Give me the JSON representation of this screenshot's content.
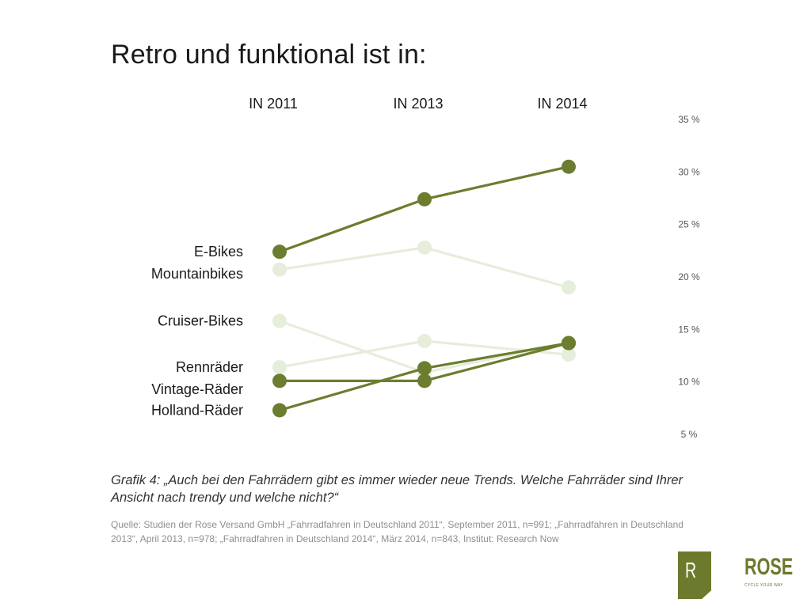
{
  "title": "Retro und funktional ist in:",
  "caption": "Grafik 4: „Auch bei den Fahrrädern gibt es immer wieder neue Trends. Welche Fahrräder sind Ihrer Ansicht nach trendy und welche nicht?“",
  "source": "Quelle: Studien der Rose Versand GmbH „Fahrradfahren in Deutschland 2011“, September 2011, n=991; „Fahrradfahren in Deutschland 2013“, April 2013, n=978;  „Fahrradfahren in Deutschland 2014“, März 2014, n=843, Institut: Research Now",
  "logo": {
    "mark": "R",
    "name": "ROSE",
    "tagline": "CYCLE YOUR WAY"
  },
  "chart_data": {
    "type": "line",
    "title": "Retro und funktional ist in:",
    "x": [
      "IN 2011",
      "IN 2013",
      "IN 2014"
    ],
    "y_ticks": [
      "35 %",
      "30 %",
      "25 %",
      "20 %",
      "15 %",
      "10 %",
      "5 %"
    ],
    "y_tick_values": [
      35,
      30,
      25,
      20,
      15,
      10,
      5
    ],
    "ylim": [
      5,
      35
    ],
    "y_axis_position": "right",
    "grid": false,
    "colors": {
      "highlight": "#6b7d2f",
      "muted": "#e6eedb"
    },
    "series": [
      {
        "name": "E-Bikes",
        "values": [
          22.4,
          27.4,
          30.5
        ],
        "highlight": true
      },
      {
        "name": "Mountainbikes",
        "values": [
          20.7,
          22.8,
          19.0
        ],
        "highlight": false
      },
      {
        "name": "Cruiser-Bikes",
        "values": [
          15.8,
          10.9,
          13.7
        ],
        "highlight": false
      },
      {
        "name": "Rennräder",
        "values": [
          11.4,
          13.9,
          12.6
        ],
        "highlight": false
      },
      {
        "name": "Vintage-Räder",
        "values": [
          10.1,
          10.1,
          13.7
        ],
        "highlight": true
      },
      {
        "name": "Holland-Räder",
        "values": [
          7.3,
          11.3,
          13.7
        ],
        "highlight": true
      }
    ]
  }
}
